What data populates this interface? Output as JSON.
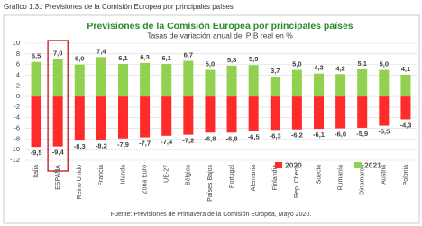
{
  "caption": "Gráfico 1.3.: Previsiones de la Comisión Europea por principales países",
  "chart_data": {
    "type": "bar",
    "title": "Previsiones de la Comisión Europea por principales países",
    "subtitle": "Tasas de variación anual del PIB real en %",
    "source": "Fuente:  Previsiones de Primavera de la Comisión Europea, Mayo 2020.",
    "categories": [
      "Italia",
      "ESPAÑA",
      "Reino Unido",
      "Francia",
      "Irlanda",
      "Zona Euro",
      "UE-27",
      "Bélgica",
      "Países Bajos",
      "Portugal",
      "Alemania",
      "Finlandia",
      "Rep. Checa",
      "Suecia",
      "Rumanía",
      "Dinamarca",
      "Austria",
      "Polonia"
    ],
    "series": [
      {
        "name": "2020",
        "color": "#ff2b2b",
        "values": [
          -9.5,
          -9.4,
          -8.3,
          -8.2,
          -7.9,
          -7.7,
          -7.4,
          -7.2,
          -6.8,
          -6.8,
          -6.5,
          -6.3,
          -6.2,
          -6.1,
          -6.0,
          -5.9,
          -5.5,
          -4.3
        ],
        "value_labels": [
          "-9,5",
          "-9,4",
          "-8,3",
          "-8,2",
          "-7,9",
          "-7,7",
          "-7,4",
          "-7,2",
          "-6,8",
          "-6,8",
          "-6,5",
          "-6,3",
          "-6,2",
          "-6,1",
          "-6,0",
          "-5,9",
          "-5,5",
          "-4,3"
        ]
      },
      {
        "name": "2021",
        "color": "#92d050",
        "values": [
          6.5,
          7.0,
          6.0,
          7.4,
          6.1,
          6.3,
          6.1,
          6.7,
          5.0,
          5.8,
          5.9,
          3.7,
          5.0,
          4.3,
          4.2,
          5.1,
          5.0,
          4.1
        ],
        "value_labels": [
          "6,5",
          "7,0",
          "6,0",
          "7,4",
          "6,1",
          "6,3",
          "6,1",
          "6,7",
          "5,0",
          "5,8",
          "5,9",
          "3,7",
          "5,0",
          "4,3",
          "4,2",
          "5,1",
          "5,0",
          "4,1"
        ]
      }
    ],
    "ylim": [
      -12,
      10
    ],
    "yticks": [
      10,
      8,
      6,
      4,
      2,
      0,
      -2,
      -4,
      -6,
      -8,
      -10,
      -12
    ],
    "grid": true,
    "legend": "bottom-right"
  }
}
